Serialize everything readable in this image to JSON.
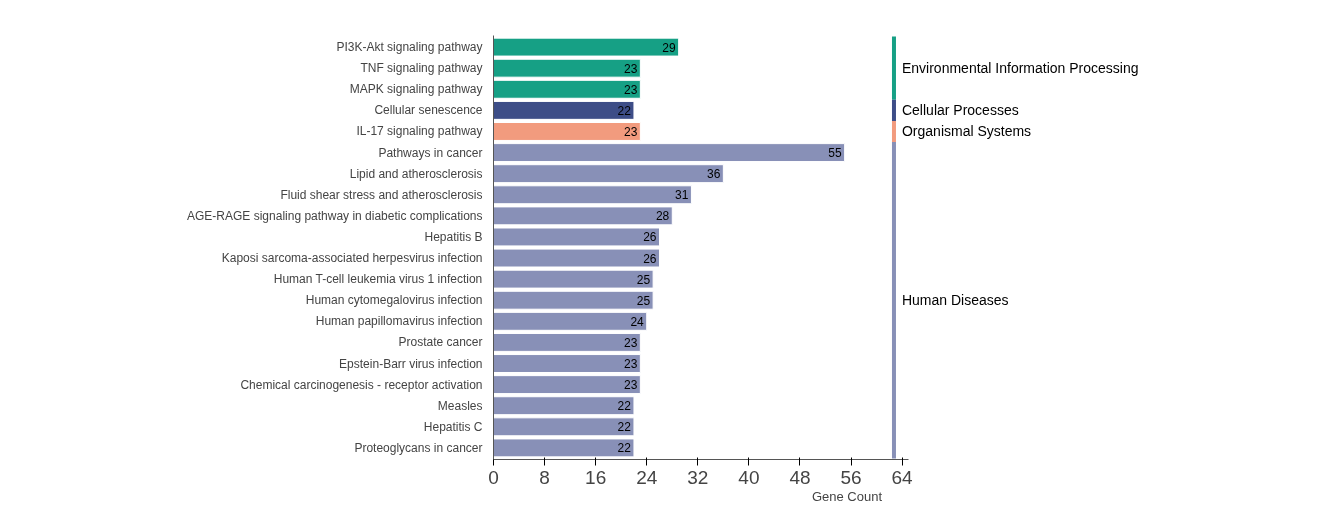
{
  "chart_data": {
    "type": "bar",
    "orientation": "horizontal",
    "xlabel": "Gene Count",
    "categories": [
      "PI3K-Akt signaling pathway",
      "TNF signaling pathway",
      "MAPK signaling pathway",
      "Cellular senescence",
      "IL-17 signaling pathway",
      "Pathways in cancer",
      "Lipid and atherosclerosis",
      "Fluid shear stress and atherosclerosis",
      "AGE-RAGE signaling pathway in diabetic complications",
      "Hepatitis B",
      "Kaposi sarcoma-associated herpesvirus infection",
      "Human T-cell leukemia virus 1 infection",
      "Human cytomegalovirus infection",
      "Human papillomavirus infection",
      "Prostate cancer",
      "Epstein-Barr virus infection",
      "Chemical carcinogenesis - receptor activation",
      "Measles",
      "Hepatitis C",
      "Proteoglycans in cancer"
    ],
    "series": [
      {
        "name": "Environmental Information Processing",
        "color": "#16a085",
        "values": [
          29,
          23,
          23,
          null,
          null,
          null,
          null,
          null,
          null,
          null,
          null,
          null,
          null,
          null,
          null,
          null,
          null,
          null,
          null,
          null
        ]
      },
      {
        "name": "Cellular Processes",
        "color": "#3d4d87",
        "values": [
          null,
          null,
          null,
          22,
          null,
          null,
          null,
          null,
          null,
          null,
          null,
          null,
          null,
          null,
          null,
          null,
          null,
          null,
          null,
          null
        ]
      },
      {
        "name": "Organismal Systems",
        "color": "#f29b7e",
        "values": [
          null,
          null,
          null,
          null,
          23,
          null,
          null,
          null,
          null,
          null,
          null,
          null,
          null,
          null,
          null,
          null,
          null,
          null,
          null,
          null
        ]
      },
      {
        "name": "Human Diseases",
        "color": "#8890b7",
        "values": [
          null,
          null,
          null,
          null,
          null,
          55,
          36,
          31,
          28,
          26,
          26,
          25,
          25,
          24,
          23,
          23,
          23,
          22,
          22,
          22
        ]
      }
    ],
    "xlim": [
      0,
      65
    ],
    "xticks": [
      0,
      8,
      16,
      24,
      32,
      40,
      48,
      56,
      64
    ],
    "grid": false,
    "data_labels": true,
    "legend": "right"
  }
}
